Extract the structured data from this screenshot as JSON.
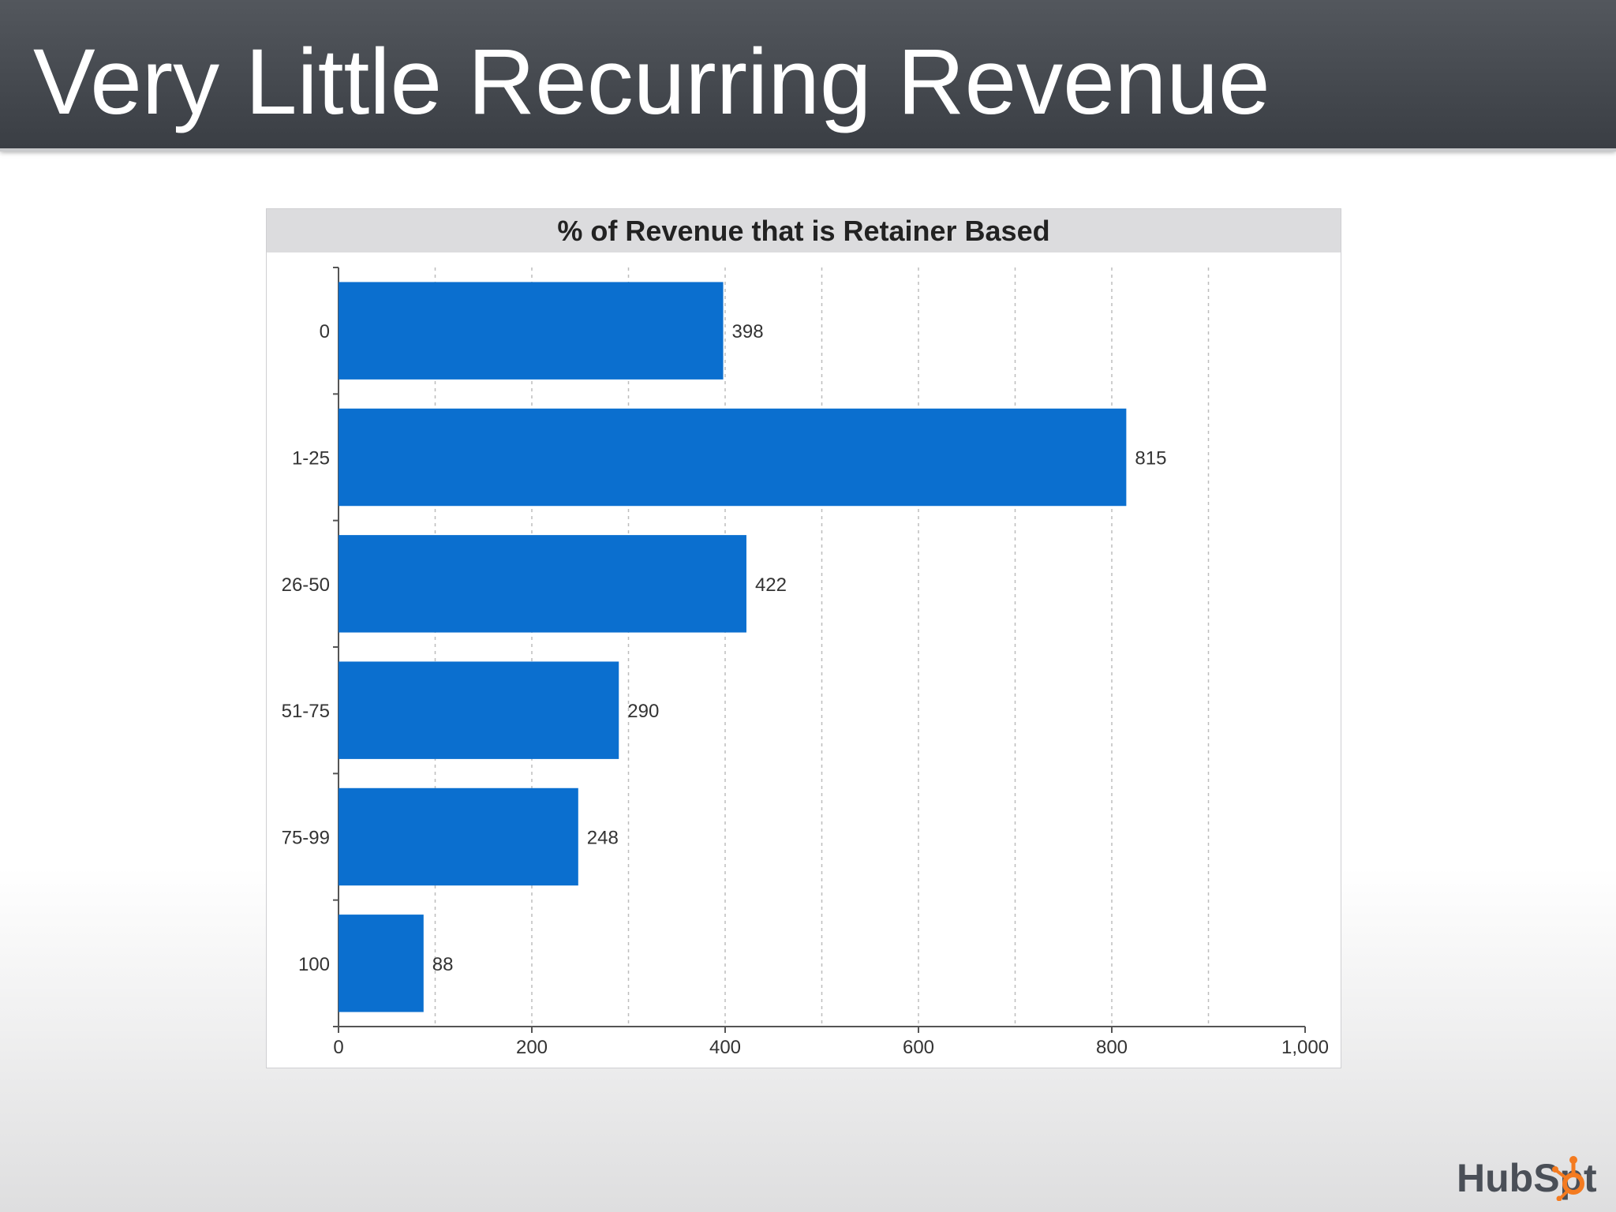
{
  "slide": {
    "title": "Very Little Recurring Revenue"
  },
  "logo": {
    "text_left": "HubSp",
    "text_right": "t",
    "accent_color": "#f47b20"
  },
  "chart_data": {
    "type": "bar",
    "orientation": "horizontal",
    "title": "% of Revenue that is Retainer Based",
    "xlabel": "",
    "ylabel": "",
    "categories": [
      "0",
      "1-25",
      "26-50",
      "51-75",
      "75-99",
      "100"
    ],
    "values": [
      398,
      815,
      422,
      290,
      248,
      88
    ],
    "value_labels": [
      "398",
      "815",
      "422",
      "290",
      "248",
      "88"
    ],
    "xlim": [
      0,
      1000
    ],
    "x_ticks": [
      0,
      200,
      400,
      600,
      800,
      1000
    ],
    "x_tick_labels": [
      "0",
      "200",
      "400",
      "600",
      "800",
      "1,000"
    ],
    "gridlines": [
      100,
      200,
      300,
      400,
      500,
      600,
      700,
      800,
      900
    ],
    "grid": true,
    "grid_style": "dashed",
    "bar_color": "#0b6fcf",
    "legend": "none"
  }
}
